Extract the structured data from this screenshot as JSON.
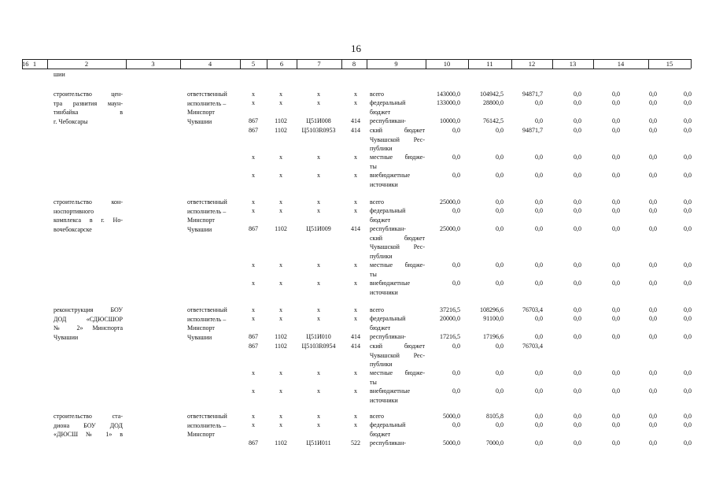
{
  "page": {
    "number": "16"
  },
  "header_cols": [
    "1",
    "2",
    "3",
    "4",
    "5",
    "6",
    "7",
    "8",
    "9",
    "10",
    "11",
    "12",
    "13",
    "14",
    "15",
    "16"
  ],
  "carry_text": "шии",
  "projects": [
    {
      "name_lines": [
        "строительство цен-",
        "тра развития маун-",
        "тинбайка в",
        "г. Чебоксары"
      ],
      "executor_lines": [
        "ответственный",
        "исполнитель –",
        "Минспорт",
        "Чувашии"
      ],
      "rows": [
        {
          "grbs": "x",
          "rz": "x",
          "csr": "x",
          "vr": "x",
          "source_lines": [
            "всего"
          ],
          "vals": [
            "143000,0",
            "104942,5",
            "94871,7",
            "0,0",
            "0,0",
            "0,0",
            "0,0"
          ]
        },
        {
          "grbs": "x",
          "rz": "x",
          "csr": "x",
          "vr": "x",
          "source_lines": [
            "федеральный",
            "бюджет"
          ],
          "vals": [
            "133000,0",
            "28800,0",
            "0,0",
            "0,0",
            "0,0",
            "0,0",
            "0,0"
          ]
        },
        {
          "grbs": "867",
          "rz": "1102",
          "csr": "Ц51И008",
          "vr": "414",
          "source_lines": [
            "республикан-"
          ],
          "vals": [
            "10000,0",
            "76142,5",
            "0,0",
            "0,0",
            "0,0",
            "0,0",
            "0,0"
          ]
        },
        {
          "grbs": "867",
          "rz": "1102",
          "csr": "Ц5103R0953",
          "vr": "414",
          "source_lines": [
            "ский бюджет",
            "Чувашской Рес-",
            "публики"
          ],
          "vals": [
            "0,0",
            "0,0",
            "94871,7",
            "0,0",
            "0,0",
            "0,0",
            "0,0"
          ]
        },
        {
          "grbs": "x",
          "rz": "x",
          "csr": "x",
          "vr": "x",
          "source_lines": [
            "местные бюдже-",
            "ты"
          ],
          "vals": [
            "0,0",
            "0,0",
            "0,0",
            "0,0",
            "0,0",
            "0,0",
            "0,0"
          ]
        },
        {
          "grbs": "x",
          "rz": "x",
          "csr": "x",
          "vr": "x",
          "source_lines": [
            "внебюджетные",
            "источники"
          ],
          "vals": [
            "0,0",
            "0,0",
            "0,0",
            "0,0",
            "0,0",
            "0,0",
            "0,0"
          ]
        }
      ]
    },
    {
      "name_lines": [
        "строительство кон-",
        "носпортивного",
        "комплекса в г. Но-",
        "вочебоксарске"
      ],
      "executor_lines": [
        "ответственный",
        "исполнитель –",
        "Минспорт",
        "Чувашии"
      ],
      "rows": [
        {
          "grbs": "x",
          "rz": "x",
          "csr": "x",
          "vr": "x",
          "source_lines": [
            "всего"
          ],
          "vals": [
            "25000,0",
            "0,0",
            "0,0",
            "0,0",
            "0,0",
            "0,0",
            "0,0"
          ]
        },
        {
          "grbs": "x",
          "rz": "x",
          "csr": "x",
          "vr": "x",
          "source_lines": [
            "федеральный",
            "бюджет"
          ],
          "vals": [
            "0,0",
            "0,0",
            "0,0",
            "0,0",
            "0,0",
            "0,0",
            "0,0"
          ]
        },
        {
          "grbs": "867",
          "rz": "1102",
          "csr": "Ц51И009",
          "vr": "414",
          "source_lines": [
            "республикан-",
            "ский бюджет",
            "Чувашской Рес-",
            "публики"
          ],
          "vals": [
            "25000,0",
            "0,0",
            "0,0",
            "0,0",
            "0,0",
            "0,0",
            "0,0"
          ]
        },
        {
          "grbs": "x",
          "rz": "x",
          "csr": "x",
          "vr": "x",
          "source_lines": [
            "местные бюдже-",
            "ты"
          ],
          "vals": [
            "0,0",
            "0,0",
            "0,0",
            "0,0",
            "0,0",
            "0,0",
            "0,0"
          ]
        },
        {
          "grbs": "x",
          "rz": "x",
          "csr": "x",
          "vr": "x",
          "source_lines": [
            "внебюджетные",
            "источники"
          ],
          "vals": [
            "0,0",
            "0,0",
            "0,0",
            "0,0",
            "0,0",
            "0,0",
            "0,0"
          ]
        }
      ]
    },
    {
      "name_lines": [
        "реконструкция БОУ",
        "ДОД «СДЮСШОР",
        "№ 2» Минспорта",
        "Чувашии"
      ],
      "executor_lines": [
        "ответственный",
        "исполнитель –",
        "Минспорт",
        "Чувашии"
      ],
      "rows": [
        {
          "grbs": "x",
          "rz": "x",
          "csr": "x",
          "vr": "x",
          "source_lines": [
            "всего"
          ],
          "vals": [
            "37216,5",
            "108296,6",
            "76703,4",
            "0,0",
            "0,0",
            "0,0",
            "0,0"
          ]
        },
        {
          "grbs": "x",
          "rz": "x",
          "csr": "x",
          "vr": "x",
          "source_lines": [
            "федеральный",
            "бюджет"
          ],
          "vals": [
            "20000,0",
            "91100,0",
            "0,0",
            "0,0",
            "0,0",
            "0,0",
            "0,0"
          ]
        },
        {
          "grbs": "867",
          "rz": "1102",
          "csr": "Ц51И010",
          "vr": "414",
          "source_lines": [
            "республикан-"
          ],
          "vals": [
            "17216,5",
            "17196,6",
            "0,0",
            "0,0",
            "0,0",
            "0,0",
            "0,0"
          ]
        },
        {
          "grbs": "867",
          "rz": "1102",
          "csr": "Ц5103R0954",
          "vr": "414",
          "source_lines": [
            "ский бюджет",
            "Чувашской Рес-",
            "публики"
          ],
          "vals": [
            "0,0",
            "0,0",
            "76703,4",
            "",
            "",
            "",
            ""
          ]
        },
        {
          "grbs": "x",
          "rz": "x",
          "csr": "x",
          "vr": "x",
          "source_lines": [
            "местные бюдже-",
            "ты"
          ],
          "vals": [
            "0,0",
            "0,0",
            "0,0",
            "0,0",
            "0,0",
            "0,0",
            "0,0"
          ]
        },
        {
          "grbs": "x",
          "rz": "x",
          "csr": "x",
          "vr": "x",
          "source_lines": [
            "внебюджетные",
            "источники"
          ],
          "vals": [
            "0,0",
            "0,0",
            "0,0",
            "0,0",
            "0,0",
            "0,0",
            "0,0"
          ]
        }
      ]
    },
    {
      "name_lines": [
        "строительство ста-",
        "диона БОУ ДОД",
        "«ДЮСШ № 1» в"
      ],
      "executor_lines": [
        "ответственный",
        "исполнитель –",
        "Минспорт"
      ],
      "rows": [
        {
          "grbs": "x",
          "rz": "x",
          "csr": "x",
          "vr": "x",
          "source_lines": [
            "всего"
          ],
          "vals": [
            "5000,0",
            "8105,8",
            "0,0",
            "0,0",
            "0,0",
            "0,0",
            "0,0"
          ]
        },
        {
          "grbs": "x",
          "rz": "x",
          "csr": "x",
          "vr": "x",
          "source_lines": [
            "федеральный",
            "бюджет"
          ],
          "vals": [
            "0,0",
            "0,0",
            "0,0",
            "0,0",
            "0,0",
            "0,0",
            "0,0"
          ]
        },
        {
          "grbs": "867",
          "rz": "1102",
          "csr": "Ц51И011",
          "vr": "522",
          "source_lines": [
            "республикан-"
          ],
          "vals": [
            "5000,0",
            "7000,0",
            "0,0",
            "0,0",
            "0,0",
            "0,0",
            "0,0"
          ]
        }
      ]
    }
  ]
}
